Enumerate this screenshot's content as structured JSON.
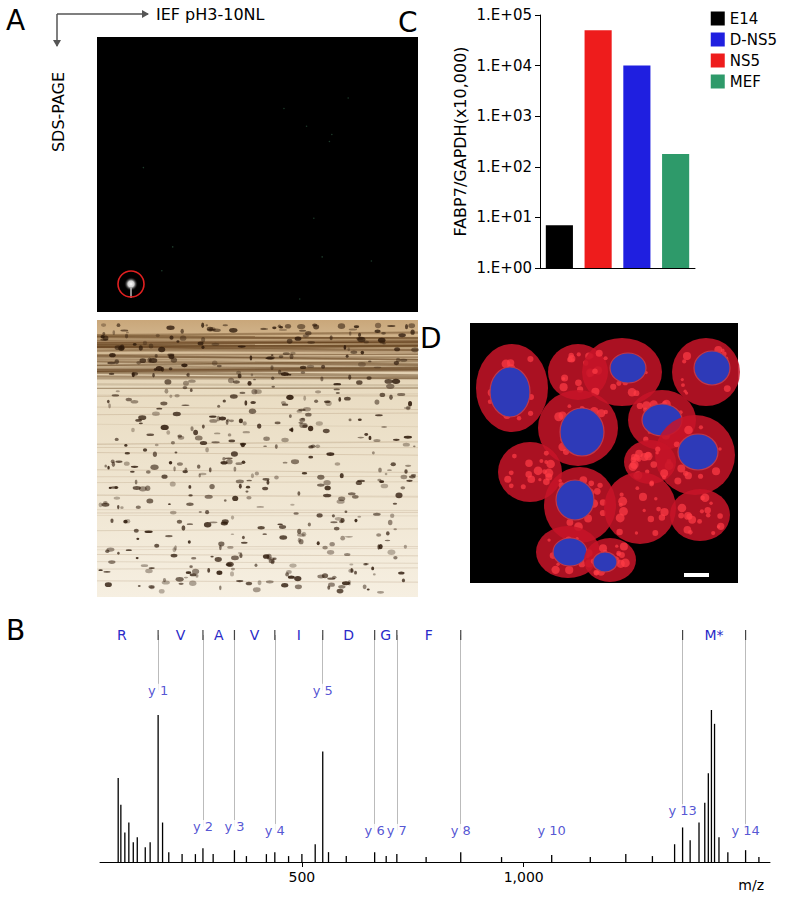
{
  "figure": {
    "panel_labels": [
      "A",
      "B",
      "C",
      "D"
    ],
    "gel": {
      "horizontal_axis": "IEF pH3-10NL",
      "vertical_axis": "SDS-PAGE"
    }
  },
  "chart_data": [
    {
      "type": "spectrum",
      "x": [
        86,
        92,
        101,
        110,
        120,
        129,
        147,
        158,
        176,
        186,
        200,
        230,
        260,
        277,
        300,
        348,
        375,
        420,
        439,
        470,
        500,
        530,
        547,
        560,
        600,
        664,
        690,
        714,
        780,
        858,
        950,
        1063,
        1150,
        1230,
        1290,
        1340,
        1358,
        1375,
        1395,
        1408,
        1416,
        1423,
        1430,
        1440,
        1460,
        1500,
        1530
      ],
      "values": [
        85,
        58,
        30,
        40,
        20,
        25,
        15,
        20,
        149,
        40,
        10,
        8,
        8,
        14,
        8,
        12,
        6,
        8,
        10,
        6,
        8,
        18,
        112,
        10,
        6,
        10,
        6,
        8,
        5,
        10,
        5,
        7,
        5,
        8,
        6,
        18,
        35,
        22,
        40,
        60,
        90,
        154,
        140,
        25,
        10,
        12,
        5
      ],
      "color": "#000000",
      "xlim": [
        45,
        1555
      ],
      "xticks": [
        500,
        {
          "value": 1000,
          "label": "1,000"
        }
      ],
      "ylim": [
        0,
        230
      ],
      "x_label": "m/z",
      "tick_labels": "x",
      "grid": false,
      "annotations": [
        {
          "text": "y 1",
          "x": 176,
          "y": 174
        },
        {
          "text": "y 2",
          "x": 277,
          "y": 36
        },
        {
          "text": "y 3",
          "x": 348,
          "y": 36
        },
        {
          "text": "y 4",
          "x": 439,
          "y": 32
        },
        {
          "text": "y 5",
          "x": 547,
          "y": 174
        },
        {
          "text": "y 6",
          "x": 664,
          "y": 32
        },
        {
          "text": "y 7",
          "x": 714,
          "y": 32
        },
        {
          "text": "y 8",
          "x": 858,
          "y": 32
        },
        {
          "text": "y 10",
          "x": 1063,
          "y": 32
        },
        {
          "text": "y 13",
          "x": 1358,
          "y": 52
        },
        {
          "text": "y 14",
          "x": 1500,
          "y": 32
        }
      ],
      "ladder": {
        "label": "y",
        "segments": [
          {
            "residue": "R",
            "from": 12,
            "to": 176
          },
          {
            "residue": "V",
            "from": 176,
            "to": 277
          },
          {
            "residue": "A",
            "from": 277,
            "to": 348
          },
          {
            "residue": "V",
            "from": 348,
            "to": 439
          },
          {
            "residue": "I",
            "from": 439,
            "to": 547
          },
          {
            "residue": "D",
            "from": 547,
            "to": 664
          },
          {
            "residue": "G",
            "from": 664,
            "to": 714
          },
          {
            "residue": "F",
            "from": 714,
            "to": 858
          },
          {
            "residue": "M*",
            "from": 1358,
            "to": 1500
          }
        ]
      }
    },
    {
      "type": "bar",
      "categories": [
        null,
        null,
        null,
        null
      ],
      "series": [
        {
          "name": "E14",
          "color": "#000000",
          "values": [
            7,
            null,
            null,
            null
          ]
        },
        {
          "name": "D-NS5",
          "color": "#1f1fe0",
          "values": [
            null,
            null,
            10000,
            null
          ]
        },
        {
          "name": "NS5",
          "color": "#ee1c1c",
          "values": [
            null,
            50000,
            null,
            null
          ]
        },
        {
          "name": "MEF",
          "color": "#2e9a6a",
          "values": [
            null,
            null,
            null,
            180
          ]
        }
      ],
      "log": "y",
      "ylim": [
        1,
        100000
      ],
      "yticks": [
        {
          "value": 1,
          "label": "1.E+00"
        },
        {
          "value": 10,
          "label": "1.E+01"
        },
        {
          "value": 100,
          "label": "1.E+02"
        },
        {
          "value": 1000,
          "label": "1.E+03"
        },
        {
          "value": 10000,
          "label": "1.E+04"
        },
        {
          "value": 100000,
          "label": "1.E+05"
        }
      ],
      "y_label": "FABP7/GAPDH(x10,000)",
      "legend": "top-right",
      "tick_labels": "y",
      "grid": false
    }
  ]
}
